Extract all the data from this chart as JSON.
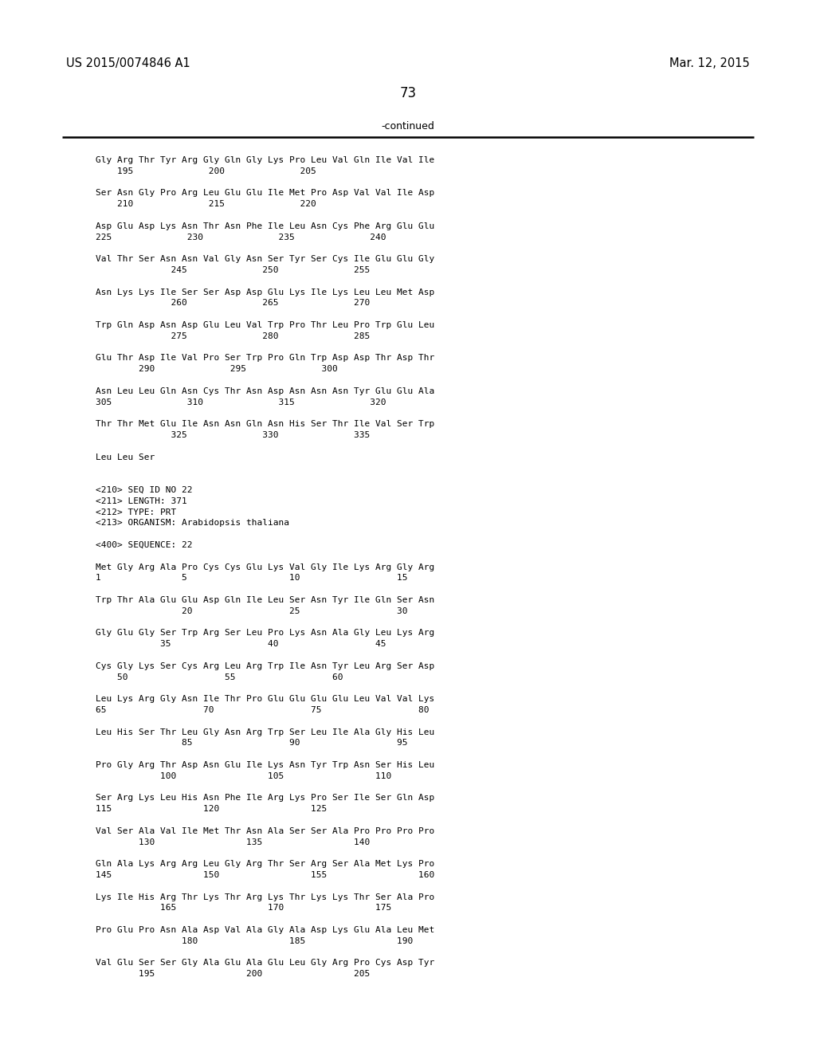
{
  "header_left": "US 2015/0074846 A1",
  "header_right": "Mar. 12, 2015",
  "page_number": "73",
  "continued_text": "-continued",
  "background_color": "#ffffff",
  "text_color": "#000000",
  "content_lines": [
    "Gly Arg Thr Tyr Arg Gly Gln Gly Lys Pro Leu Val Gln Ile Val Ile",
    "    195              200              205",
    "",
    "Ser Asn Gly Pro Arg Leu Glu Glu Ile Met Pro Asp Val Val Ile Asp",
    "    210              215              220",
    "",
    "Asp Glu Asp Lys Asn Thr Asn Phe Ile Leu Asn Cys Phe Arg Glu Glu",
    "225              230              235              240",
    "",
    "Val Thr Ser Asn Asn Val Gly Asn Ser Tyr Ser Cys Ile Glu Glu Gly",
    "              245              250              255",
    "",
    "Asn Lys Lys Ile Ser Ser Asp Asp Glu Lys Ile Lys Leu Leu Met Asp",
    "              260              265              270",
    "",
    "Trp Gln Asp Asn Asp Glu Leu Val Trp Pro Thr Leu Pro Trp Glu Leu",
    "              275              280              285",
    "",
    "Glu Thr Asp Ile Val Pro Ser Trp Pro Gln Trp Asp Asp Thr Asp Thr",
    "        290              295              300",
    "",
    "Asn Leu Leu Gln Asn Cys Thr Asn Asp Asn Asn Asn Tyr Glu Glu Ala",
    "305              310              315              320",
    "",
    "Thr Thr Met Glu Ile Asn Asn Gln Asn His Ser Thr Ile Val Ser Trp",
    "              325              330              335",
    "",
    "Leu Leu Ser",
    "",
    "",
    "<210> SEQ ID NO 22",
    "<211> LENGTH: 371",
    "<212> TYPE: PRT",
    "<213> ORGANISM: Arabidopsis thaliana",
    "",
    "<400> SEQUENCE: 22",
    "",
    "Met Gly Arg Ala Pro Cys Cys Glu Lys Val Gly Ile Lys Arg Gly Arg",
    "1               5                   10                  15",
    "",
    "Trp Thr Ala Glu Glu Asp Gln Ile Leu Ser Asn Tyr Ile Gln Ser Asn",
    "                20                  25                  30",
    "",
    "Gly Glu Gly Ser Trp Arg Ser Leu Pro Lys Asn Ala Gly Leu Lys Arg",
    "            35                  40                  45",
    "",
    "Cys Gly Lys Ser Cys Arg Leu Arg Trp Ile Asn Tyr Leu Arg Ser Asp",
    "    50                  55                  60",
    "",
    "Leu Lys Arg Gly Asn Ile Thr Pro Glu Glu Glu Glu Leu Val Val Lys",
    "65                  70                  75                  80",
    "",
    "Leu His Ser Thr Leu Gly Asn Arg Trp Ser Leu Ile Ala Gly His Leu",
    "                85                  90                  95",
    "",
    "Pro Gly Arg Thr Asp Asn Glu Ile Lys Asn Tyr Trp Asn Ser His Leu",
    "            100                 105                 110",
    "",
    "Ser Arg Lys Leu His Asn Phe Ile Arg Lys Pro Ser Ile Ser Gln Asp",
    "115                 120                 125",
    "",
    "Val Ser Ala Val Ile Met Thr Asn Ala Ser Ser Ala Pro Pro Pro Pro",
    "        130                 135                 140",
    "",
    "Gln Ala Lys Arg Arg Leu Gly Arg Thr Ser Arg Ser Ala Met Lys Pro",
    "145                 150                 155                 160",
    "",
    "Lys Ile His Arg Thr Lys Thr Arg Lys Thr Lys Lys Thr Ser Ala Pro",
    "            165                 170                 175",
    "",
    "Pro Glu Pro Asn Ala Asp Val Ala Gly Ala Asp Lys Glu Ala Leu Met",
    "                180                 185                 190",
    "",
    "Val Glu Ser Ser Gly Ala Glu Ala Glu Leu Gly Arg Pro Cys Asp Tyr",
    "        195                 200                 205"
  ]
}
